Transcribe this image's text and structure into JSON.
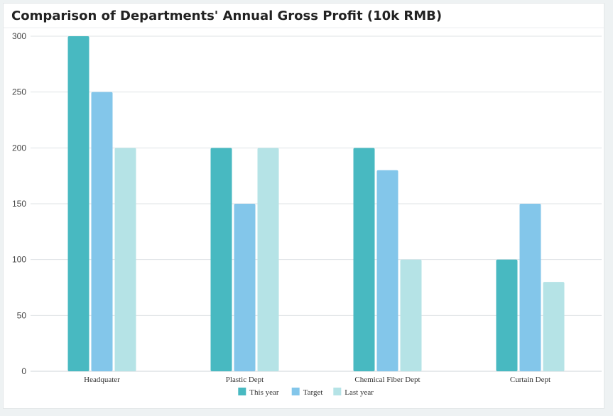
{
  "chart_data": {
    "type": "bar",
    "title": "Comparison of Departments' Annual Gross Profit (10k RMB)",
    "xlabel": "",
    "ylabel": "",
    "categories": [
      "Headquater",
      "Plastic Dept",
      "Chemical Fiber Dept",
      "Curtain Dept"
    ],
    "series": [
      {
        "name": "This year",
        "values": [
          300,
          200,
          200,
          100
        ],
        "color": "#48b9c1"
      },
      {
        "name": "Target",
        "values": [
          250,
          150,
          180,
          150
        ],
        "color": "#83c6ea"
      },
      {
        "name": "Last year",
        "values": [
          200,
          200,
          100,
          80
        ],
        "color": "#b5e3e6"
      }
    ],
    "ylim": [
      0,
      300
    ],
    "yticks": [
      0,
      50,
      100,
      150,
      200,
      250,
      300
    ],
    "grid": true,
    "legend": "bottom-center"
  }
}
